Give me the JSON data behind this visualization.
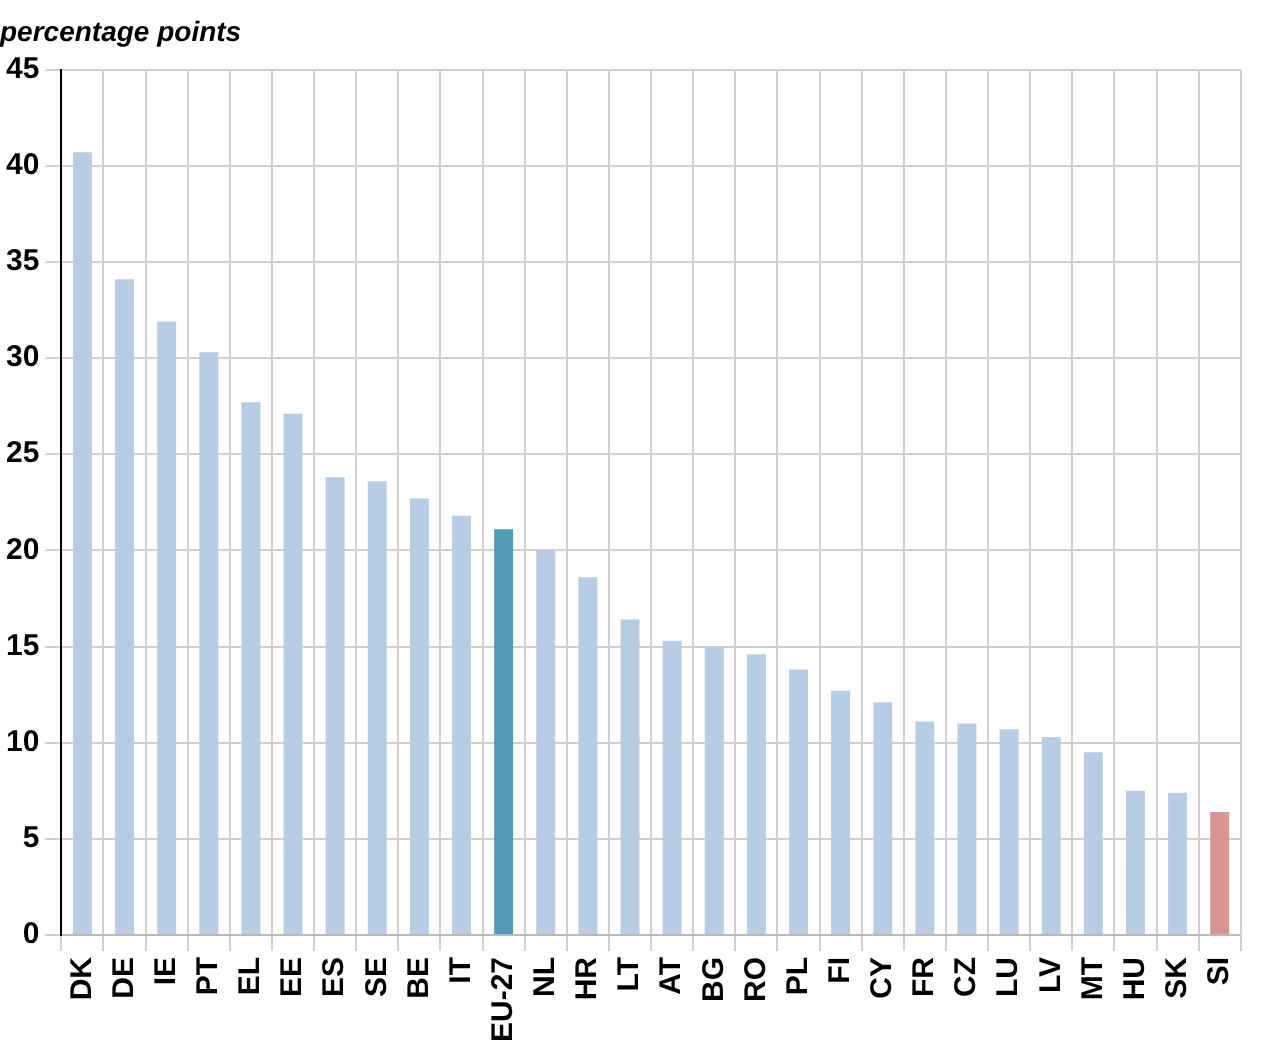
{
  "chart_data": {
    "type": "bar",
    "ylabel": "percentage points",
    "categories": [
      "DK",
      "DE",
      "IE",
      "PT",
      "EL",
      "EE",
      "ES",
      "SE",
      "BE",
      "IT",
      "EU-27",
      "NL",
      "HR",
      "LT",
      "AT",
      "BG",
      "RO",
      "PL",
      "FI",
      "CY",
      "FR",
      "CZ",
      "LU",
      "LV",
      "MT",
      "HU",
      "SK",
      "SI"
    ],
    "values": [
      40.7,
      34.1,
      31.9,
      30.3,
      27.7,
      27.1,
      23.8,
      23.6,
      22.7,
      21.8,
      21.1,
      20.0,
      18.6,
      16.4,
      15.3,
      15.0,
      14.6,
      13.8,
      12.7,
      12.1,
      11.1,
      11.0,
      10.7,
      10.3,
      9.5,
      7.5,
      7.4,
      6.4
    ],
    "colors": [
      "#b8cce4",
      "#b8cce4",
      "#b8cce4",
      "#b8cce4",
      "#b8cce4",
      "#b8cce4",
      "#b8cce4",
      "#b8cce4",
      "#b8cce4",
      "#b8cce4",
      "#4f9bb8",
      "#b8cce4",
      "#b8cce4",
      "#b8cce4",
      "#b8cce4",
      "#b8cce4",
      "#b8cce4",
      "#b8cce4",
      "#b8cce4",
      "#b8cce4",
      "#b8cce4",
      "#b8cce4",
      "#b8cce4",
      "#b8cce4",
      "#b8cce4",
      "#b8cce4",
      "#b8cce4",
      "#d99594"
    ],
    "ylim": [
      0,
      45
    ],
    "yticks": [
      0,
      5,
      10,
      15,
      20,
      25,
      30,
      35,
      40,
      45
    ],
    "grid": true,
    "legend": false
  }
}
